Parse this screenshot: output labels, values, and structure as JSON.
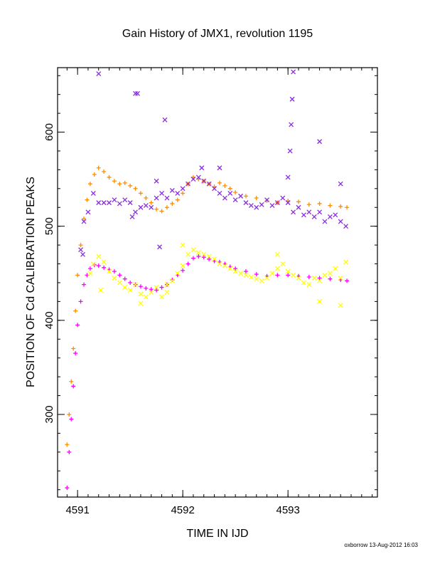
{
  "chart_data": {
    "type": "scatter",
    "title": "Gain History of JMX1, revolution 1195",
    "xlabel": "TIME IN IJD",
    "ylabel": "POSITION OF Cd CALIBRATION PEAKS",
    "footer": "oxborrow 13-Aug-2012 16:03",
    "xlim": [
      4590.81,
      4593.85
    ],
    "ylim": [
      212.2,
      668.5
    ],
    "xticks": [
      4591,
      4592,
      4593
    ],
    "yticks": [
      300,
      400,
      500,
      600
    ],
    "xtick_labels": [
      "4591",
      "4592",
      "4593"
    ],
    "ytick_labels": [
      "300",
      "400",
      "500",
      "600"
    ],
    "grid": false,
    "series": [
      {
        "color": "#ff8c00",
        "marker": "plus",
        "x": [
          4590.9,
          4590.92,
          4590.94,
          4590.96,
          4590.98,
          4591.0,
          4591.03,
          4591.06,
          4591.09,
          4591.12,
          4591.16,
          4591.2,
          4591.25,
          4591.3,
          4591.35,
          4591.4,
          4591.45,
          4591.5,
          4591.55,
          4591.6,
          4591.65,
          4591.7,
          4591.75,
          4591.8,
          4591.85,
          4591.9,
          4591.95,
          4592.0,
          4592.05,
          4592.1,
          4592.15,
          4592.2,
          4592.25,
          4592.3,
          4592.35,
          4592.4,
          4592.45,
          4592.5,
          4592.6,
          4592.7,
          4592.8,
          4592.9,
          4593.0,
          4593.1,
          4593.2,
          4593.3,
          4593.4,
          4593.5,
          4593.56
        ],
        "y": [
          268,
          300,
          335,
          370,
          410,
          448,
          480,
          508,
          528,
          545,
          555,
          562,
          558,
          552,
          548,
          545,
          546,
          543,
          540,
          535,
          530,
          525,
          518,
          516,
          520,
          524,
          528,
          535,
          545,
          552,
          550,
          548,
          545,
          542,
          546,
          543,
          540,
          536,
          532,
          530,
          527,
          525,
          527,
          526,
          523,
          524,
          522,
          521,
          520
        ]
      },
      {
        "color": "#ff00ff",
        "marker": "plus",
        "x": [
          4590.9,
          4590.92,
          4590.94,
          4590.96,
          4590.98,
          4591.0,
          4591.03,
          4591.06,
          4591.09,
          4591.12,
          4591.16,
          4591.2,
          4591.25,
          4591.3,
          4591.35,
          4591.4,
          4591.45,
          4591.5,
          4591.55,
          4591.6,
          4591.65,
          4591.7,
          4591.75,
          4591.8,
          4591.85,
          4591.9,
          4591.95,
          4592.0,
          4592.05,
          4592.1,
          4592.15,
          4592.2,
          4592.25,
          4592.3,
          4592.35,
          4592.4,
          4592.45,
          4592.5,
          4592.6,
          4592.7,
          4592.8,
          4592.9,
          4593.0,
          4593.1,
          4593.2,
          4593.3,
          4593.4,
          4593.5,
          4593.56
        ],
        "y": [
          222,
          260,
          295,
          330,
          365,
          395,
          420,
          438,
          448,
          455,
          459,
          458,
          456,
          454,
          452,
          448,
          444,
          440,
          438,
          436,
          434,
          433,
          432,
          435,
          438,
          443,
          448,
          453,
          460,
          466,
          468,
          467,
          465,
          463,
          462,
          460,
          457,
          455,
          452,
          449,
          447,
          448,
          448,
          447,
          446,
          445,
          444,
          443,
          442
        ]
      },
      {
        "color": "#8a2be2",
        "marker": "x",
        "x": [
          4591.03,
          4591.06,
          4591.1,
          4591.15,
          4591.2,
          4591.25,
          4591.3,
          4591.35,
          4591.4,
          4591.45,
          4591.5,
          4591.55,
          4591.6,
          4591.65,
          4591.7,
          4591.75,
          4591.8,
          4591.85,
          4591.9,
          4591.95,
          4592.0,
          4592.05,
          4592.1,
          4592.15,
          4592.2,
          4592.25,
          4592.3,
          4592.35,
          4592.4,
          4592.45,
          4592.5,
          4592.55,
          4592.6,
          4592.65,
          4592.7,
          4592.75,
          4592.8,
          4592.85,
          4592.9,
          4592.95,
          4593.0,
          4593.05,
          4593.1,
          4593.15,
          4593.2,
          4593.25,
          4593.3,
          4593.35,
          4593.4,
          4593.45,
          4593.5,
          4593.55,
          4591.2,
          4591.55,
          4591.57,
          4591.83,
          4591.75,
          4592.18,
          4592.35,
          4593.0,
          4593.02,
          4593.03,
          4593.04,
          4593.05,
          4593.3,
          4593.5,
          4591.05,
          4591.52,
          4591.78
        ],
        "y": [
          475,
          505,
          515,
          535,
          525,
          525,
          525,
          528,
          524,
          528,
          525,
          515,
          520,
          522,
          520,
          530,
          535,
          530,
          538,
          535,
          540,
          545,
          550,
          552,
          548,
          545,
          540,
          535,
          530,
          535,
          528,
          532,
          525,
          522,
          520,
          523,
          528,
          522,
          525,
          530,
          525,
          515,
          520,
          512,
          515,
          510,
          515,
          505,
          510,
          512,
          505,
          500,
          662,
          641,
          641,
          613,
          548,
          562,
          562,
          552,
          580,
          608,
          635,
          664,
          590,
          545,
          470,
          510,
          478
        ]
      },
      {
        "color": "#ffff00",
        "marker": "x",
        "x": [
          4591.12,
          4591.15,
          4591.2,
          4591.25,
          4591.3,
          4591.35,
          4591.4,
          4591.45,
          4591.5,
          4591.55,
          4591.6,
          4591.65,
          4591.7,
          4591.75,
          4591.8,
          4591.85,
          4591.9,
          4591.95,
          4592.0,
          4592.05,
          4592.1,
          4592.15,
          4592.2,
          4592.25,
          4592.3,
          4592.35,
          4592.4,
          4592.45,
          4592.5,
          4592.55,
          4592.6,
          4592.65,
          4592.7,
          4592.75,
          4592.8,
          4592.85,
          4592.9,
          4592.95,
          4593.0,
          4593.05,
          4593.1,
          4593.15,
          4593.2,
          4593.25,
          4593.3,
          4593.35,
          4593.4,
          4593.45,
          4593.5,
          4593.55,
          4591.22,
          4591.6,
          4591.85,
          4592.0,
          4592.9,
          4593.3,
          4593.5
        ],
        "y": [
          450,
          460,
          468,
          462,
          452,
          445,
          440,
          435,
          432,
          438,
          428,
          425,
          430,
          435,
          425,
          430,
          442,
          450,
          458,
          470,
          475,
          472,
          470,
          468,
          465,
          460,
          458,
          455,
          452,
          450,
          448,
          446,
          444,
          442,
          445,
          450,
          455,
          460,
          452,
          448,
          445,
          440,
          438,
          445,
          442,
          448,
          450,
          455,
          445,
          462,
          432,
          418,
          438,
          480,
          470,
          420,
          416
        ]
      }
    ]
  }
}
